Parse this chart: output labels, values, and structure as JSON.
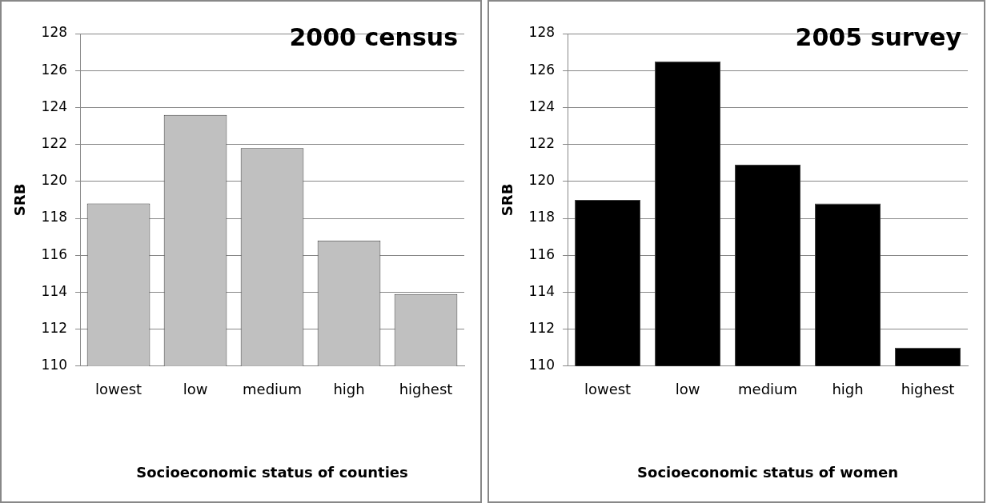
{
  "chart_data": [
    {
      "type": "bar",
      "title": "2000 census",
      "xlabel": "Socioeconomic status of counties",
      "ylabel": "SRB",
      "categories": [
        "lowest",
        "low",
        "medium",
        "high",
        "highest"
      ],
      "values": [
        118.8,
        123.6,
        121.8,
        116.8,
        113.9
      ],
      "color": "#c0c0c0",
      "ylim": [
        110,
        128
      ],
      "yticks": [
        110,
        112,
        114,
        116,
        118,
        120,
        122,
        124,
        126,
        128
      ],
      "grid": "y"
    },
    {
      "type": "bar",
      "title": "2005 survey",
      "xlabel": "Socioeconomic status of women",
      "ylabel": "SRB",
      "categories": [
        "lowest",
        "low",
        "medium",
        "high",
        "highest"
      ],
      "values": [
        119.0,
        126.5,
        120.9,
        118.8,
        111.0
      ],
      "color": "#000000",
      "ylim": [
        110,
        128
      ],
      "yticks": [
        110,
        112,
        114,
        116,
        118,
        120,
        122,
        124,
        126,
        128
      ],
      "grid": "y"
    }
  ]
}
